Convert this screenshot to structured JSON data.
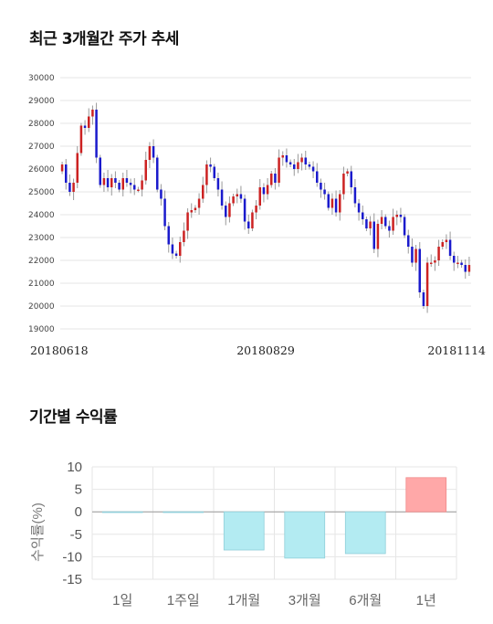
{
  "sections": {
    "price_title": "최근 3개월간 주가 추세",
    "return_title": "기간별 수익률"
  },
  "colors": {
    "up": "#cc2222",
    "down": "#1a1acc",
    "positive_bar": "#ffa8a8",
    "negative_bar": "#b3ebf2",
    "grid": "#e6e6e6"
  },
  "chart_data": [
    {
      "type": "candlestick",
      "title": "",
      "ylim": [
        19000,
        30000
      ],
      "yticks": [
        19000,
        20000,
        21000,
        22000,
        23000,
        24000,
        25000,
        26000,
        27000,
        28000,
        29000,
        30000
      ],
      "xtick_labels": [
        "20180618",
        "20180829",
        "20181114"
      ],
      "grid": true,
      "closes": [
        26200,
        25400,
        25000,
        25400,
        26700,
        27900,
        27800,
        28300,
        28600,
        26500,
        25300,
        25600,
        25200,
        25600,
        25400,
        25100,
        25600,
        25400,
        25300,
        25100,
        25100,
        25500,
        26400,
        27000,
        26500,
        25100,
        24700,
        23500,
        22700,
        22300,
        22200,
        22800,
        23300,
        24100,
        24200,
        24300,
        24700,
        25300,
        26200,
        26100,
        25600,
        25100,
        24400,
        23900,
        24500,
        24800,
        24900,
        24700,
        23700,
        23400,
        24100,
        24400,
        25200,
        24900,
        25300,
        25800,
        25400,
        26500,
        26600,
        26300,
        26200,
        26000,
        26300,
        26500,
        26200,
        26100,
        25900,
        25400,
        25100,
        24900,
        24300,
        24700,
        24100,
        24900,
        25800,
        25900,
        25200,
        24500,
        24100,
        23800,
        23400,
        23700,
        22500,
        23600,
        23900,
        23500,
        23300,
        23900,
        24000,
        23900,
        23100,
        22600,
        21900,
        22500,
        20600,
        20000,
        21900,
        21900,
        22000,
        22600,
        22800,
        22900,
        22200,
        21900,
        21900,
        21800,
        21500,
        21800
      ]
    },
    {
      "type": "bar",
      "title": "",
      "categories": [
        "1일",
        "1주일",
        "1개월",
        "3개월",
        "6개월",
        "1년"
      ],
      "values": [
        0.0,
        -0.1,
        -8.5,
        -10.3,
        -9.3,
        7.6
      ],
      "ylabel": "수익률(%)",
      "ylim": [
        -15,
        10
      ],
      "yticks": [
        10,
        5,
        0,
        -5,
        -10,
        -15
      ],
      "grid": true
    }
  ]
}
